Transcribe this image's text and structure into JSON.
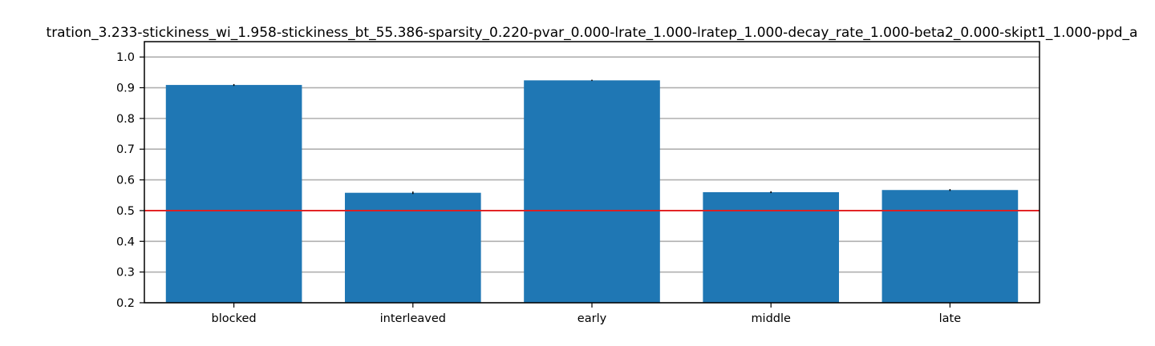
{
  "chart_data": {
    "type": "bar",
    "title": "tration_3.233-stickiness_wi_1.958-stickiness_bt_55.386-sparsity_0.220-pvar_0.000-lrate_1.000-lratep_1.000-decay_rate_1.000-beta2_0.000-skipt1_1.000-ppd_a",
    "xlabel": "",
    "ylabel": "",
    "categories": [
      "blocked",
      "interleaved",
      "early",
      "middle",
      "late"
    ],
    "values": [
      0.909,
      0.558,
      0.924,
      0.56,
      0.567
    ],
    "errors": [
      0.003,
      0.004,
      0.002,
      0.003,
      0.003
    ],
    "ylim": [
      0.2,
      1.05
    ],
    "yticks": [
      0.2,
      0.3,
      0.4,
      0.5,
      0.6,
      0.7,
      0.8,
      0.9,
      1.0
    ],
    "ytick_labels": [
      "0.2",
      "0.3",
      "0.4",
      "0.5",
      "0.6",
      "0.7",
      "0.8",
      "0.9",
      "1.0"
    ],
    "reference_line": 0.5,
    "grid": "y",
    "colors": {
      "bar": "#1f77b4",
      "reference_line": "#e31a1c",
      "grid": "#b0b0b0",
      "axis": "#000000",
      "error_bar": "#000000"
    }
  }
}
